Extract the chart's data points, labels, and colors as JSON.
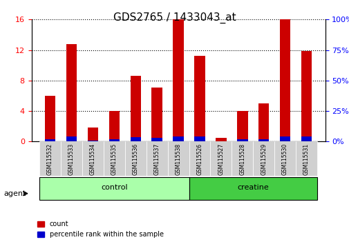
{
  "title": "GDS2765 / 1433043_at",
  "samples": [
    "GSM115532",
    "GSM115533",
    "GSM115534",
    "GSM115535",
    "GSM115536",
    "GSM115537",
    "GSM115538",
    "GSM115526",
    "GSM115527",
    "GSM115528",
    "GSM115529",
    "GSM115530",
    "GSM115531"
  ],
  "count_values": [
    6.0,
    12.8,
    1.8,
    4.0,
    8.6,
    7.1,
    16.0,
    11.2,
    0.5,
    4.0,
    5.0,
    16.0,
    11.9
  ],
  "percentile_values": [
    1.7,
    4.1,
    0.5,
    1.7,
    3.5,
    2.8,
    4.3,
    4.0,
    0.2,
    1.7,
    2.1,
    4.3,
    4.0
  ],
  "groups": [
    {
      "label": "control",
      "indices": [
        0,
        1,
        2,
        3,
        4,
        5,
        6
      ],
      "color": "#aaffaa"
    },
    {
      "label": "creatine",
      "indices": [
        7,
        8,
        9,
        10,
        11,
        12
      ],
      "color": "#44cc44"
    }
  ],
  "bar_color_red": "#cc0000",
  "bar_color_blue": "#0000cc",
  "bar_width": 0.5,
  "ylim_left": [
    0,
    16
  ],
  "ylim_right": [
    0,
    100
  ],
  "yticks_left": [
    0,
    4,
    8,
    12,
    16
  ],
  "yticks_right": [
    0,
    25,
    50,
    75,
    100
  ],
  "grid_color": "black",
  "agent_label": "agent",
  "bg_color_tick": "#d0d0d0",
  "legend_count_label": "count",
  "legend_percentile_label": "percentile rank within the sample"
}
